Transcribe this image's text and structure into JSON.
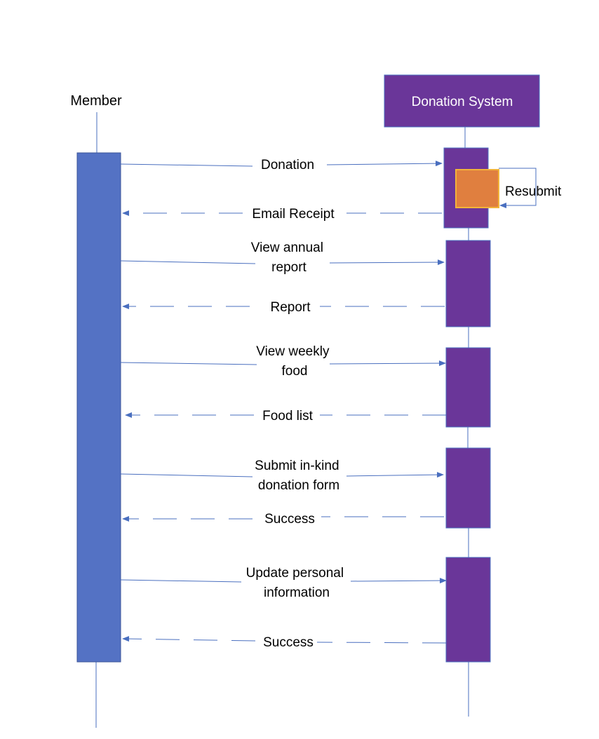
{
  "participants": {
    "member": "Member",
    "system": "Donation System"
  },
  "self_call": {
    "label": "Resubmit"
  },
  "messages": [
    {
      "label": "Donation",
      "dir": "request"
    },
    {
      "label": "Email Receipt",
      "dir": "response"
    },
    {
      "label": "View annual report",
      "dir": "request"
    },
    {
      "label": "Report",
      "dir": "response"
    },
    {
      "label": "View weekly food",
      "dir": "request"
    },
    {
      "label": "Food list",
      "dir": "response"
    },
    {
      "label": "Submit in-kind donation form",
      "dir": "request"
    },
    {
      "label": "Success",
      "dir": "response"
    },
    {
      "label": "Update personal information",
      "dir": "request"
    },
    {
      "label": "Success",
      "dir": "response"
    }
  ],
  "colors": {
    "member_activation": "#5472C4",
    "system_activation": "#6A3699",
    "self_call_box": "#E07F3F",
    "self_call_border": "#F2B43A",
    "arrow": "#4A6FBF"
  }
}
